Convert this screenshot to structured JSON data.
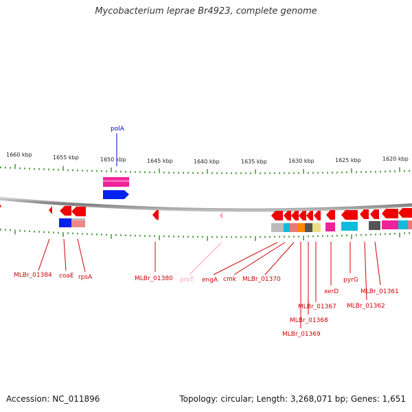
{
  "title": "Mycobacterium leprae Br4923, complete genome",
  "footer": {
    "accession": "Accession: NC_011896",
    "summary": "Topology: circular; Length: 3,268,071 bp; Genes: 1,651"
  },
  "colors": {
    "backbone": "#8a8a8a",
    "ticks": "#2e8b22",
    "gene_label": "#cc0000",
    "polA_label": "#0000cc",
    "proT_label": "#ff99bb",
    "gene_arrow": "#ff0000"
  },
  "scale": {
    "unit": "kbp",
    "labels": [
      "1660 kbp",
      "1655 kbp",
      "1650 kbp",
      "1645 kbp",
      "1640 kbp",
      "1635 kbp",
      "1630 kbp",
      "1625 kbp",
      "1620 kbp"
    ]
  },
  "genes": {
    "top": [
      "polA"
    ],
    "bottom": [
      "MLBr_01384",
      "coaE",
      "rpsA",
      "MLBr_01380",
      "proT",
      "engA",
      "cmk",
      "MLBr_01370",
      "MLBr_01367",
      "MLBr_01368",
      "MLBr_01369",
      "xerD",
      "pyrG",
      "MLBr_01362",
      "MLBr_01361"
    ]
  }
}
